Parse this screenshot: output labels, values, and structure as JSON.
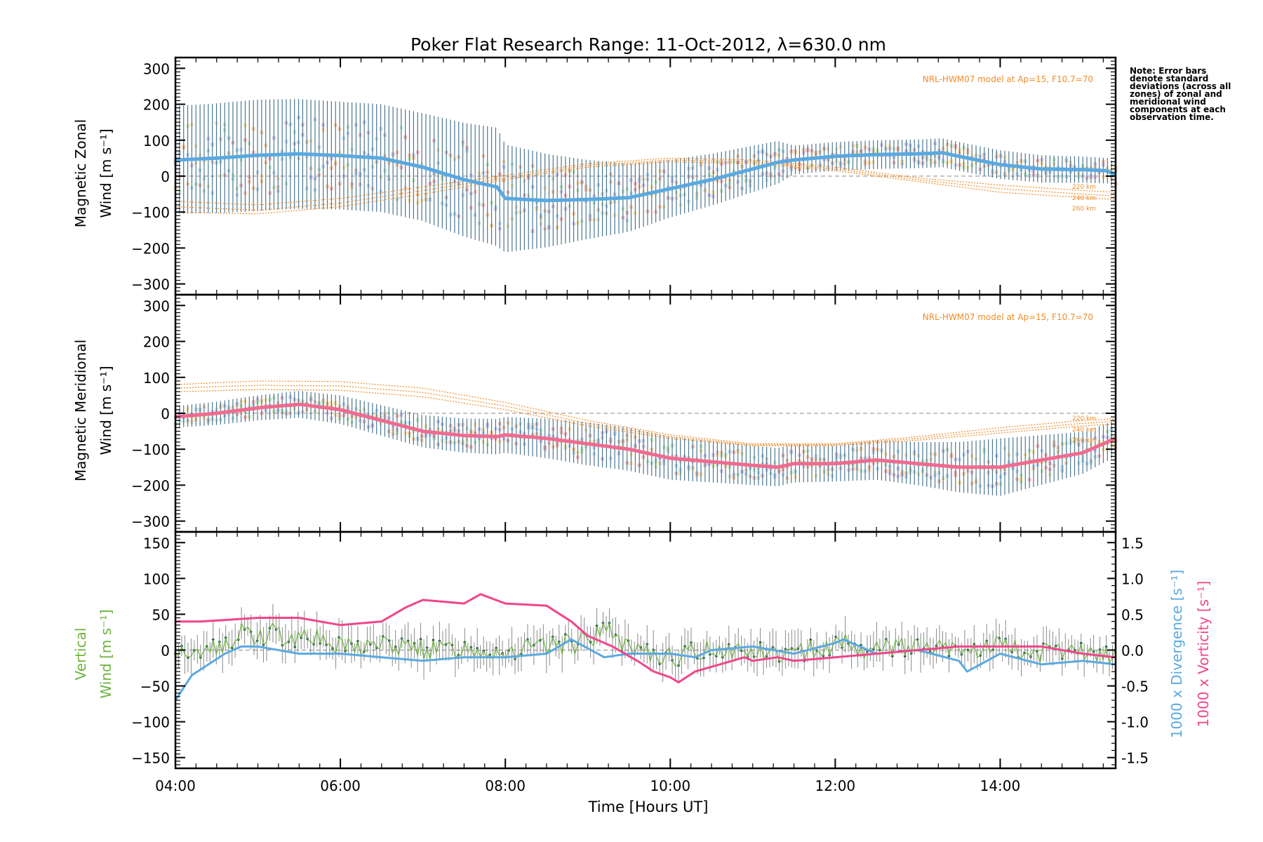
{
  "title": "Poker Flat Research Range: 11-Oct-2012, λ=630.0 nm",
  "note": "Note: Error bars denote standard deviations (across all zones) of zonal and meridional wind components at each observation time.",
  "model_label": "NRL-HWM07 model at Ap=15, F10.7=70",
  "altitude_labels": [
    "220 km",
    "240 km",
    "260 km"
  ],
  "colors": {
    "zonal": "#5aa9e0",
    "meridional": "#f06b8f",
    "vertical": "#6db33f",
    "divergence": "#5aa9e0",
    "vorticity": "#f0468a",
    "model": "#f28c28",
    "errorbar": "#2c5f7c",
    "errorbar_light": "#8a8a8a"
  },
  "chart_data": [
    {
      "type": "line",
      "panel": "zonal",
      "ylabel_line1": "Magnetic Zonal",
      "ylabel_line2": "Wind [m s⁻¹]",
      "ylim": [
        -330,
        330
      ],
      "yticks": [
        300,
        200,
        100,
        0,
        -100,
        -200,
        -300
      ],
      "xlim": [
        4.0,
        15.4
      ],
      "series": [
        {
          "role": "mean",
          "x": [
            4.0,
            4.5,
            5.0,
            5.5,
            6.0,
            6.5,
            7.0,
            7.5,
            7.9,
            8.0,
            8.5,
            9.0,
            9.5,
            10.0,
            10.5,
            11.0,
            11.3,
            11.5,
            12.0,
            12.5,
            13.0,
            13.3,
            13.5,
            14.0,
            14.5,
            15.0,
            15.3,
            15.4
          ],
          "y": [
            45,
            50,
            58,
            62,
            57,
            50,
            25,
            -10,
            -30,
            -62,
            -68,
            -65,
            -60,
            -35,
            -10,
            20,
            38,
            45,
            55,
            60,
            62,
            65,
            55,
            32,
            20,
            18,
            15,
            2
          ]
        },
        {
          "role": "std",
          "x": [
            4.0,
            5.0,
            6.0,
            7.0,
            7.9,
            8.0,
            9.0,
            10.0,
            11.3,
            11.5,
            13.0,
            14.0,
            15.4
          ],
          "y": [
            150,
            155,
            150,
            150,
            165,
            150,
            110,
            80,
            60,
            40,
            40,
            40,
            35
          ]
        },
        {
          "role": "model",
          "x": [
            4.0,
            5.0,
            6.0,
            7.0,
            8.0,
            9.0,
            10.0,
            11.0,
            12.0,
            13.0,
            14.0,
            15.0,
            15.4
          ],
          "y": [
            -100,
            -105,
            -85,
            -50,
            -10,
            25,
            40,
            35,
            15,
            -15,
            -45,
            -60,
            -65
          ]
        },
        {
          "role": "model",
          "x": [
            4.0,
            5.0,
            6.0,
            7.0,
            8.0,
            9.0,
            10.0,
            11.0,
            12.0,
            13.0,
            14.0,
            15.0,
            15.4
          ],
          "y": [
            -85,
            -95,
            -75,
            -40,
            -5,
            30,
            45,
            40,
            20,
            -10,
            -35,
            -50,
            -55
          ]
        },
        {
          "role": "model",
          "x": [
            4.0,
            5.0,
            6.0,
            7.0,
            8.0,
            9.0,
            10.0,
            11.0,
            12.0,
            13.0,
            14.0,
            15.0,
            15.4
          ],
          "y": [
            -70,
            -80,
            -62,
            -30,
            2,
            35,
            50,
            45,
            25,
            -5,
            -25,
            -40,
            -45
          ]
        }
      ]
    },
    {
      "type": "line",
      "panel": "meridional",
      "ylabel_line1": "Magnetic Meridional",
      "ylabel_line2": "Wind [m s⁻¹]",
      "ylim": [
        -330,
        330
      ],
      "yticks": [
        300,
        200,
        100,
        0,
        -100,
        -200,
        -300
      ],
      "xlim": [
        4.0,
        15.4
      ],
      "series": [
        {
          "role": "mean",
          "x": [
            4.0,
            4.5,
            5.0,
            5.5,
            6.0,
            6.5,
            7.0,
            7.5,
            7.9,
            8.0,
            8.5,
            9.0,
            9.5,
            10.0,
            10.5,
            11.0,
            11.3,
            11.5,
            12.0,
            12.5,
            13.0,
            13.5,
            14.0,
            14.5,
            15.0,
            15.4
          ],
          "y": [
            -10,
            0,
            15,
            25,
            10,
            -20,
            -50,
            -62,
            -65,
            -60,
            -70,
            -85,
            -100,
            -125,
            -135,
            -145,
            -150,
            -140,
            -140,
            -130,
            -140,
            -150,
            -150,
            -130,
            -110,
            -70
          ]
        },
        {
          "role": "std",
          "x": [
            4.0,
            6.0,
            8.0,
            9.0,
            10.0,
            11.0,
            12.0,
            13.0,
            14.0,
            15.4
          ],
          "y": [
            30,
            40,
            50,
            60,
            60,
            55,
            50,
            60,
            80,
            50
          ]
        },
        {
          "role": "model",
          "x": [
            4.0,
            5.0,
            6.0,
            7.0,
            8.0,
            9.0,
            10.0,
            11.0,
            12.0,
            13.0,
            14.0,
            15.0,
            15.4
          ],
          "y": [
            80,
            90,
            88,
            70,
            30,
            -20,
            -60,
            -85,
            -85,
            -65,
            -40,
            -20,
            -15
          ]
        },
        {
          "role": "model",
          "x": [
            4.0,
            5.0,
            6.0,
            7.0,
            8.0,
            9.0,
            10.0,
            11.0,
            12.0,
            13.0,
            14.0,
            15.0,
            15.4
          ],
          "y": [
            70,
            78,
            76,
            58,
            20,
            -28,
            -65,
            -88,
            -87,
            -70,
            -48,
            -28,
            -22
          ]
        },
        {
          "role": "model",
          "x": [
            4.0,
            5.0,
            6.0,
            7.0,
            8.0,
            9.0,
            10.0,
            11.0,
            12.0,
            13.0,
            14.0,
            15.0,
            15.4
          ],
          "y": [
            60,
            66,
            64,
            46,
            10,
            -35,
            -70,
            -90,
            -90,
            -75,
            -55,
            -35,
            -30
          ]
        }
      ]
    },
    {
      "type": "line",
      "panel": "vertical",
      "ylabel_line1": "Vertical",
      "ylabel_line2": "Wind [m s⁻¹]",
      "ylabel_right1": "1000 x Divergence [s⁻¹]",
      "ylabel_right2": "1000 x Vorticity [s⁻¹]",
      "ylim": [
        -165,
        165
      ],
      "yticks": [
        150,
        100,
        50,
        0,
        -50,
        -100,
        -150
      ],
      "ylim_right": [
        -1.65,
        1.65
      ],
      "yticks_right": [
        "1.5",
        "1.0",
        "0.5",
        "0.0",
        "-0.5",
        "-1.0",
        "-1.5"
      ],
      "yticks_right_values": [
        1.5,
        1.0,
        0.5,
        0.0,
        -0.5,
        -1.0,
        -1.5
      ],
      "xlabel": "Time [Hours UT]",
      "xlim": [
        4.0,
        15.4
      ],
      "xticks": [
        "04:00",
        "06:00",
        "08:00",
        "10:00",
        "12:00",
        "14:00"
      ],
      "xtick_values": [
        4,
        6,
        8,
        10,
        12,
        14
      ],
      "series": [
        {
          "role": "vertical",
          "x": [
            4.0,
            4.2,
            4.4,
            4.6,
            4.8,
            5.0,
            5.2,
            5.4,
            5.6,
            5.8,
            6.0,
            6.5,
            7.0,
            7.5,
            8.0,
            8.5,
            9.0,
            9.2,
            9.5,
            10.0,
            10.5,
            11.0,
            11.5,
            12.0,
            12.5,
            13.0,
            13.5,
            14.0,
            14.5,
            15.0,
            15.4
          ],
          "y": [
            -5,
            -10,
            10,
            5,
            30,
            20,
            25,
            15,
            30,
            10,
            5,
            10,
            0,
            5,
            0,
            5,
            10,
            30,
            0,
            -10,
            5,
            0,
            -5,
            10,
            0,
            5,
            0,
            5,
            -5,
            -5,
            -10
          ]
        },
        {
          "role": "divergence",
          "x": [
            4.0,
            4.2,
            4.4,
            4.6,
            4.8,
            5.0,
            5.5,
            6.0,
            6.5,
            7.0,
            7.5,
            8.0,
            8.5,
            8.8,
            9.2,
            9.5,
            10.0,
            10.3,
            10.5,
            11.0,
            11.5,
            12.0,
            12.1,
            12.5,
            13.0,
            13.5,
            13.6,
            14.0,
            14.5,
            15.0,
            15.4
          ],
          "y": [
            -0.7,
            -0.35,
            -0.2,
            -0.05,
            0.05,
            0.05,
            -0.05,
            -0.05,
            -0.1,
            -0.15,
            -0.1,
            -0.1,
            -0.05,
            0.15,
            -0.1,
            -0.05,
            -0.05,
            -0.1,
            0.0,
            0.05,
            -0.05,
            0.1,
            0.15,
            -0.05,
            0.0,
            -0.15,
            -0.3,
            -0.05,
            -0.2,
            -0.15,
            -0.2
          ]
        },
        {
          "role": "vorticity",
          "x": [
            4.0,
            4.3,
            4.6,
            5.0,
            5.5,
            6.0,
            6.5,
            6.8,
            7.0,
            7.5,
            7.7,
            8.0,
            8.5,
            8.8,
            9.0,
            9.3,
            9.6,
            9.8,
            10.0,
            10.1,
            10.3,
            10.6,
            10.9,
            11.0,
            11.3,
            11.5,
            12.0,
            12.5,
            13.0,
            13.5,
            14.0,
            14.5,
            15.0,
            15.4
          ],
          "y": [
            0.4,
            0.4,
            0.42,
            0.45,
            0.45,
            0.35,
            0.4,
            0.6,
            0.7,
            0.65,
            0.78,
            0.65,
            0.62,
            0.4,
            0.2,
            0.05,
            -0.15,
            -0.3,
            -0.38,
            -0.45,
            -0.3,
            -0.2,
            -0.1,
            -0.15,
            -0.1,
            -0.15,
            -0.1,
            -0.05,
            0.0,
            0.05,
            0.05,
            0.05,
            -0.05,
            -0.1
          ]
        }
      ]
    }
  ]
}
